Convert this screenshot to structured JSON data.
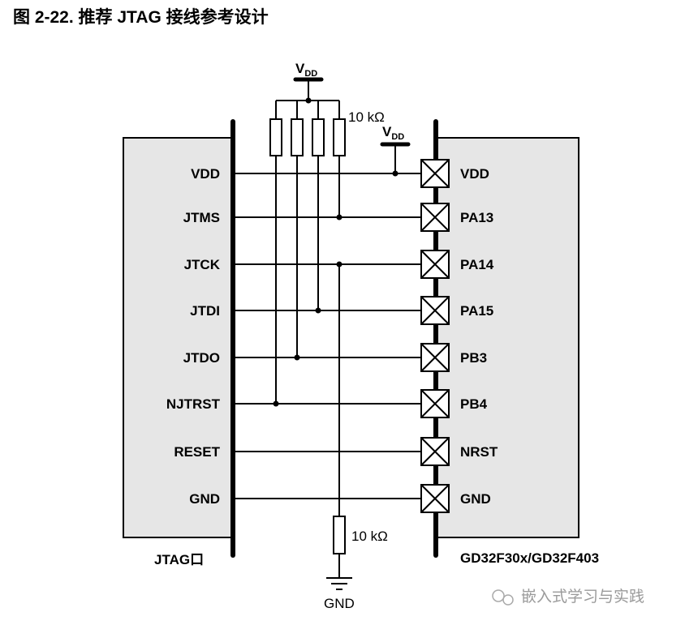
{
  "title": "图 2-22.  推荐 JTAG 接线参考设计",
  "left_label": "JTAG口",
  "right_label": "GD32F30x/GD32F403",
  "vdd": {
    "main": "V",
    "sub": "DD"
  },
  "pullup_value": "10 kΩ",
  "pulldown_value": "10 kΩ",
  "gnd_label": "GND",
  "left_pins": [
    "VDD",
    "JTMS",
    "JTCK",
    "JTDI",
    "JTDO",
    "NJTRST",
    "RESET",
    "GND"
  ],
  "right_pins": [
    "VDD",
    "PA13",
    "PA14",
    "PA15",
    "PB3",
    "PB4",
    "NRST",
    "GND"
  ],
  "watermark": "嵌入式学习与实践",
  "colors": {
    "box_fill": "#e6e6e6",
    "line": "#000000",
    "watermark": "#9a9a9a"
  }
}
